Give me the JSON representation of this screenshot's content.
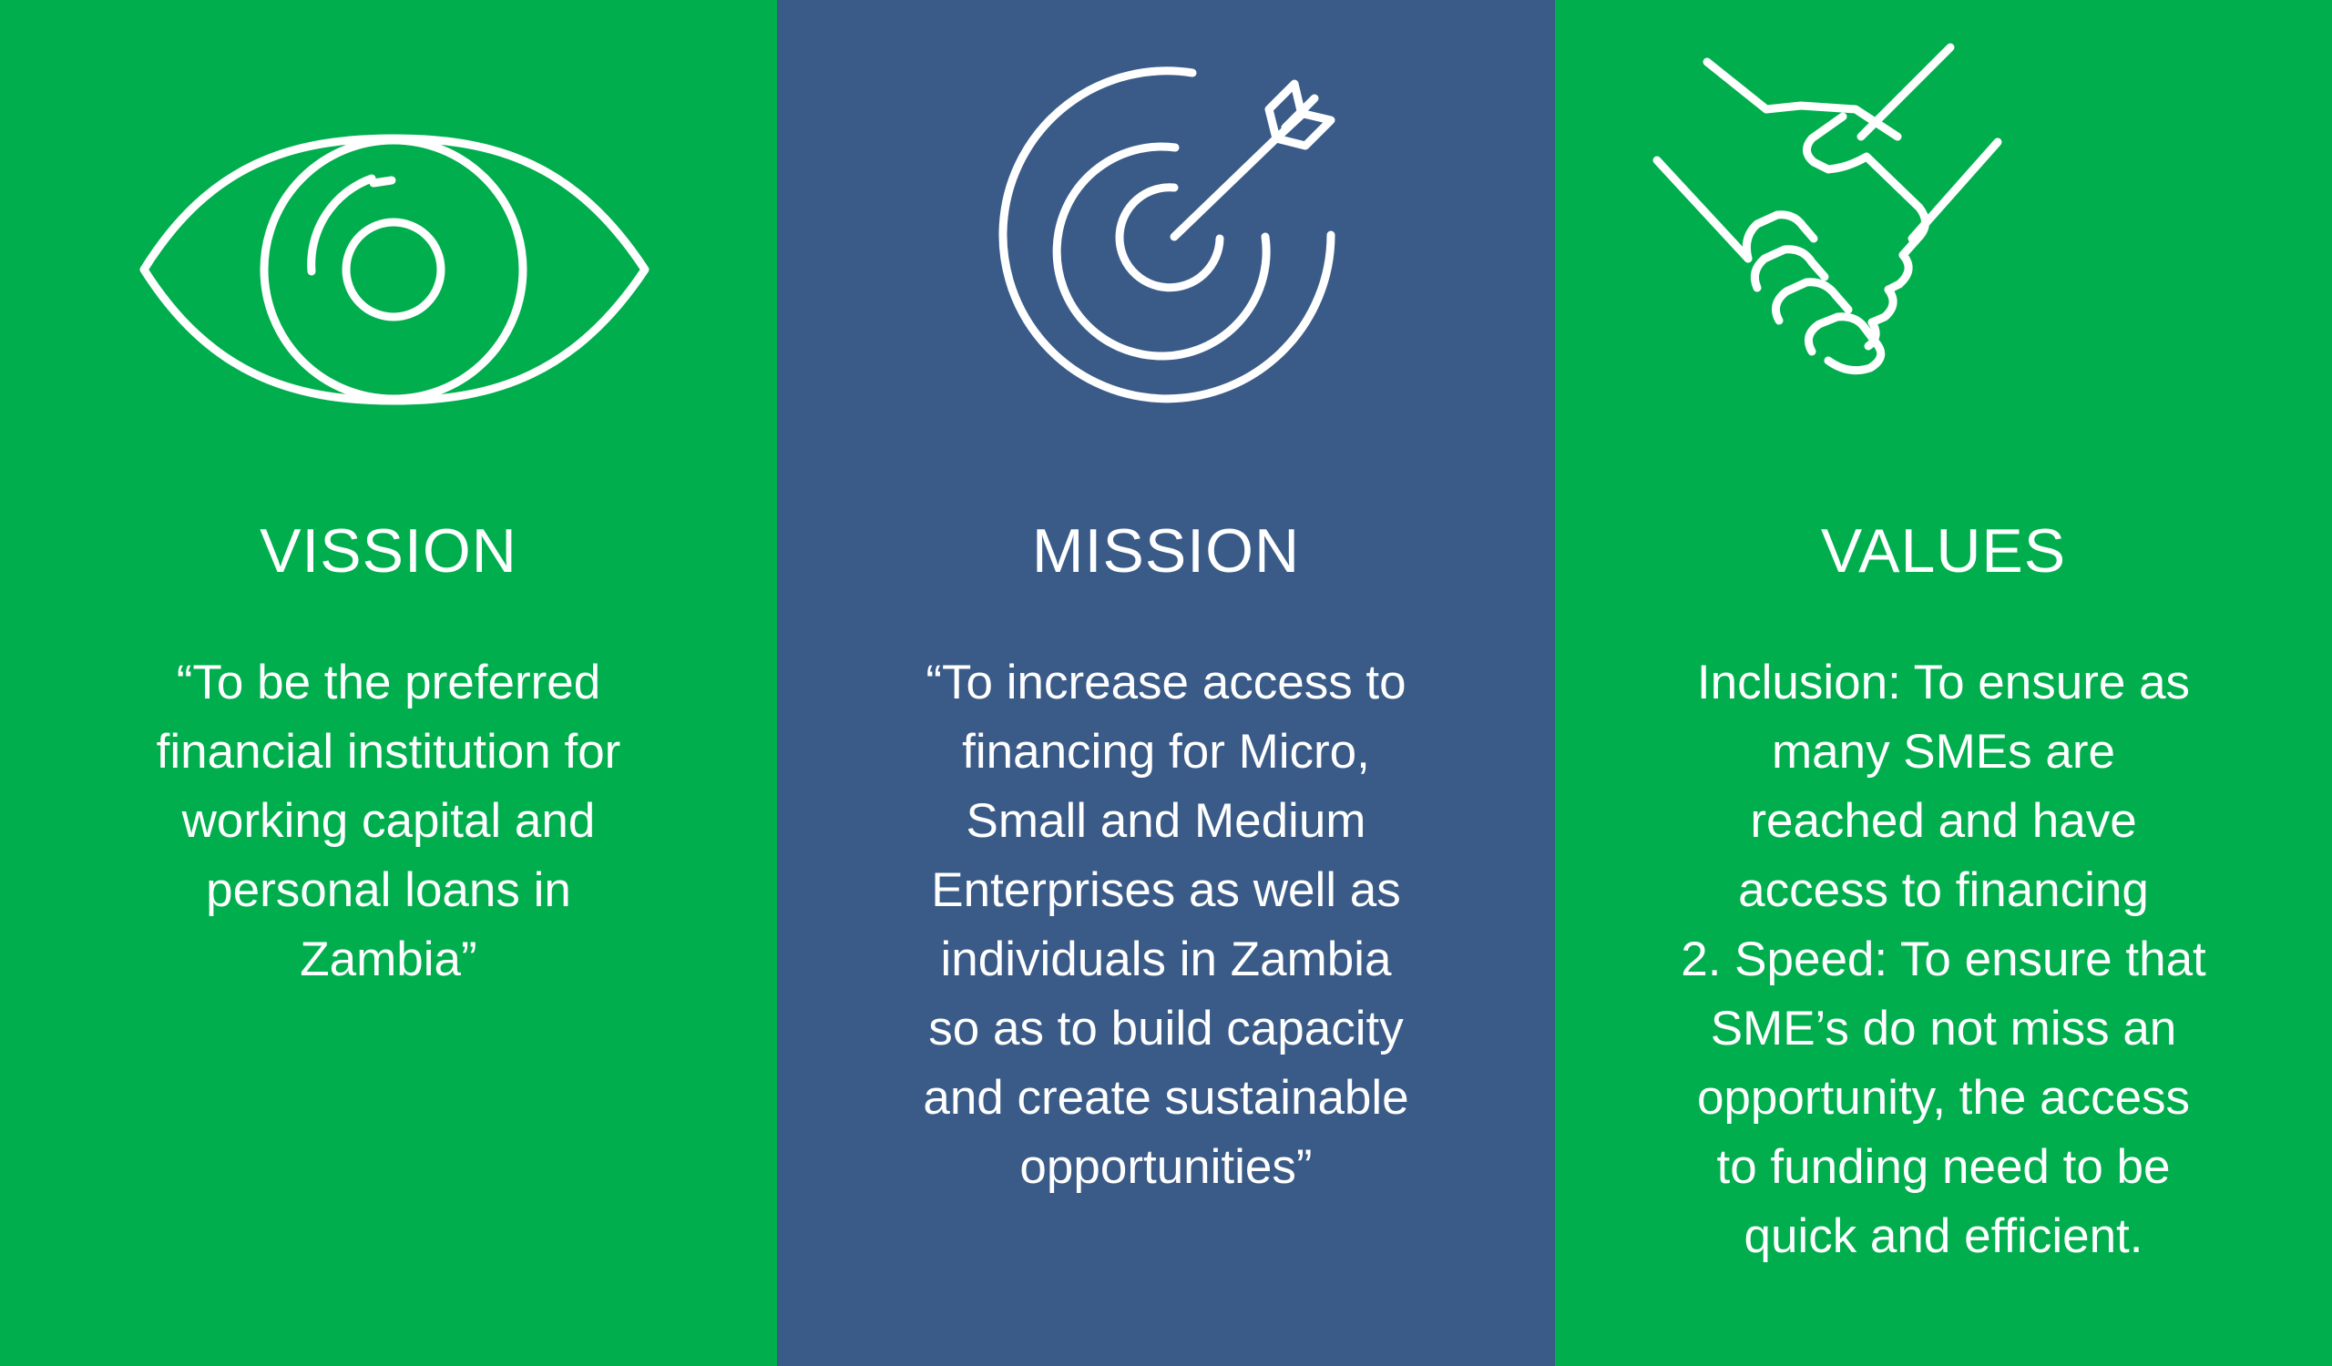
{
  "colors": {
    "green": "#00AE4D",
    "blue": "#3A5B88",
    "white": "#FFFFFF"
  },
  "panels": [
    {
      "icon": "eye-icon",
      "title": "VISSION",
      "body": "“To be the preferred\nfinancial institution for\nworking capital and\npersonal loans in\nZambia”"
    },
    {
      "icon": "target-arrow-icon",
      "title": "MISSION",
      "body": "“To increase access to\nfinancing for Micro,\nSmall and Medium\nEnterprises as well as\nindividuals in Zambia\nso as to build capacity\nand create sustainable\nopportunities”"
    },
    {
      "icon": "handshake-icon",
      "title": "VALUES",
      "body": "Inclusion: To ensure as\nmany SMEs are\nreached and have\naccess to financing\n2. Speed: To ensure that\nSME’s do not miss an\nopportunity, the access\nto funding need to be\nquick and efficient."
    }
  ]
}
